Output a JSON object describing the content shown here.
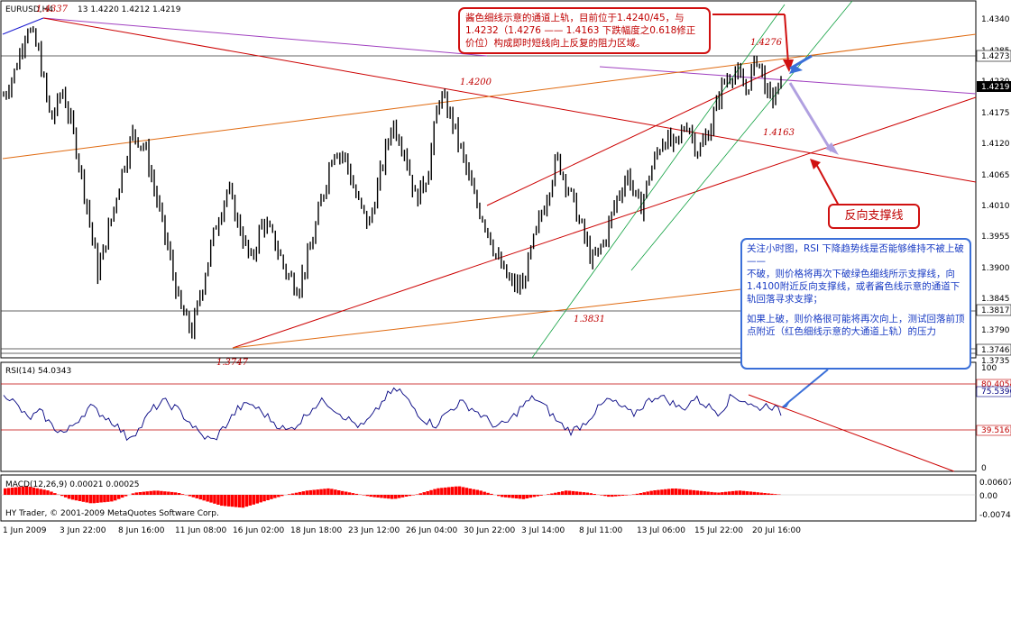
{
  "colors": {
    "candle": "#000000",
    "red_line": "#cc0000",
    "orange_line": "#e06a10",
    "purple_line": "#a040c0",
    "green_line": "#10a040",
    "rsi_line": "#000080",
    "macd_bar": "#ff0000",
    "blue_arrow": "#3a6fd8",
    "lavender_arrow": "#b0a0e0"
  },
  "main": {
    "symbol_label": "EURUSD,H4",
    "ohlc_label": "13 1.4220 1.4212 1.4219"
  },
  "rsi": {
    "label": "RSI(14) 54.0343",
    "levels": [
      80,
      40
    ]
  },
  "macd": {
    "label": "MACD(12,26,9) 0.00021 0.00025"
  },
  "copyright": "HY Trader, © 2001-2009 MetaQuotes Software Corp.",
  "annotations": {
    "top_note": "酱色细线示意的通道上轨，目前位于1.4240/45，与1.4232（1.4276 —— 1.4163 下跌幅度之0.618修正价位）构成即时短线向上反复的阻力区域。",
    "support_note": "反向支撑线",
    "right_note_1": "关注小时图，RSI 下降趋势线是否能够维持不被上破 ——",
    "right_note_2": "不破，则价格将再次下破绿色细线所示支撑线，向1.4100附近反向支撑线，或者酱色线示意的通道下轨回落寻求支撑；",
    "right_note_3": "如果上破，则价格很可能将再次向上，测试回落前顶点附近（红色细线示意的大通道上轨）的压力"
  },
  "chart_data": [
    {
      "type": "candlestick",
      "title": "EURUSD,H4",
      "ylim": [
        1.37,
        1.437
      ],
      "y_ticks": [
        "1.4340",
        "1.4285",
        "1.4230",
        "1.4175",
        "1.4120",
        "1.4065",
        "1.4010",
        "1.3955",
        "1.3900",
        "1.3845",
        "1.3790",
        "1.3735"
      ],
      "x_ticks": [
        "1 Jun 2009",
        "3 Jun 22:00",
        "8 Jun 16:00",
        "11 Jun 08:00",
        "16 Jun 02:00",
        "18 Jun 18:00",
        "23 Jun 12:00",
        "26 Jun 04:00",
        "30 Jun 22:00",
        "3 Jul 14:00",
        "8 Jul 11:00",
        "13 Jul 06:00",
        "15 Jul 22:00",
        "20 Jul 16:00"
      ],
      "price_markers": [
        {
          "label": "1.4273",
          "value": 1.4273
        },
        {
          "label": "1.4219",
          "value": 1.4219
        },
        {
          "label": "1.3817",
          "value": 1.3817
        },
        {
          "label": "1.3746",
          "value": 1.3746
        }
      ],
      "swing_labels": [
        {
          "label": "1.4337",
          "value": 1.4337
        },
        {
          "label": "1.4200",
          "value": 1.42
        },
        {
          "label": "1.4276",
          "value": 1.4276
        },
        {
          "label": "1.4163",
          "value": 1.4163
        },
        {
          "label": "1.3831",
          "value": 1.3831
        },
        {
          "label": "1.3747",
          "value": 1.3747
        }
      ],
      "close_path": [
        1.42,
        1.425,
        1.4337,
        1.428,
        1.415,
        1.421,
        1.412,
        1.4,
        1.386,
        1.395,
        1.405,
        1.413,
        1.41,
        1.4,
        1.39,
        1.379,
        1.3747,
        1.385,
        1.395,
        1.402,
        1.395,
        1.388,
        1.396,
        1.392,
        1.386,
        1.3831,
        1.39,
        1.4,
        1.41,
        1.408,
        1.4,
        1.395,
        1.405,
        1.415,
        1.41,
        1.4,
        1.405,
        1.42,
        1.416,
        1.408,
        1.4,
        1.395,
        1.388,
        1.384,
        1.3831,
        1.392,
        1.4,
        1.408,
        1.402,
        1.395,
        1.388,
        1.392,
        1.4,
        1.405,
        1.398,
        1.406,
        1.412,
        1.41,
        1.415,
        1.409,
        1.414,
        1.422,
        1.425,
        1.421,
        1.4276,
        1.419,
        1.4219
      ]
    },
    {
      "type": "line",
      "title": "RSI(14) 54.0343",
      "ylim": [
        0,
        100
      ],
      "y_ticks": [
        "100",
        "80.4054",
        "75.5396",
        "39.5161",
        "0"
      ],
      "series": [
        {
          "values": [
            74,
            62,
            48,
            55,
            40,
            34,
            47,
            60,
            52,
            44,
            30,
            38,
            57,
            65,
            58,
            46,
            32,
            27,
            42,
            58,
            63,
            54,
            44,
            36,
            45,
            59,
            66,
            56,
            47,
            40,
            52,
            70,
            77,
            62,
            48,
            42,
            55,
            64,
            58,
            49,
            40,
            46,
            60,
            69,
            58,
            44,
            36,
            43,
            56,
            67,
            60,
            52,
            63,
            71,
            65,
            57,
            68,
            61,
            54,
            70,
            66,
            58,
            62,
            54
          ]
        }
      ]
    },
    {
      "type": "bar",
      "title": "MACD(12,26,9) 0.00021 0.00025",
      "y_ticks": [
        "0.00607",
        "0.00",
        "-0.00743"
      ],
      "series": [
        {
          "values": [
            0.003,
            0.004,
            0.002,
            -0.002,
            -0.004,
            -0.003,
            0.001,
            0.002,
            0.001,
            -0.002,
            -0.005,
            -0.006,
            -0.003,
            0.0,
            0.002,
            0.003,
            0.001,
            -0.001,
            -0.002,
            0.0,
            0.003,
            0.004,
            0.002,
            -0.001,
            -0.002,
            0.0,
            0.002,
            0.001,
            -0.001,
            0.0,
            0.002,
            0.003,
            0.002,
            0.001,
            0.002,
            0.001,
            0.0
          ]
        }
      ]
    }
  ]
}
